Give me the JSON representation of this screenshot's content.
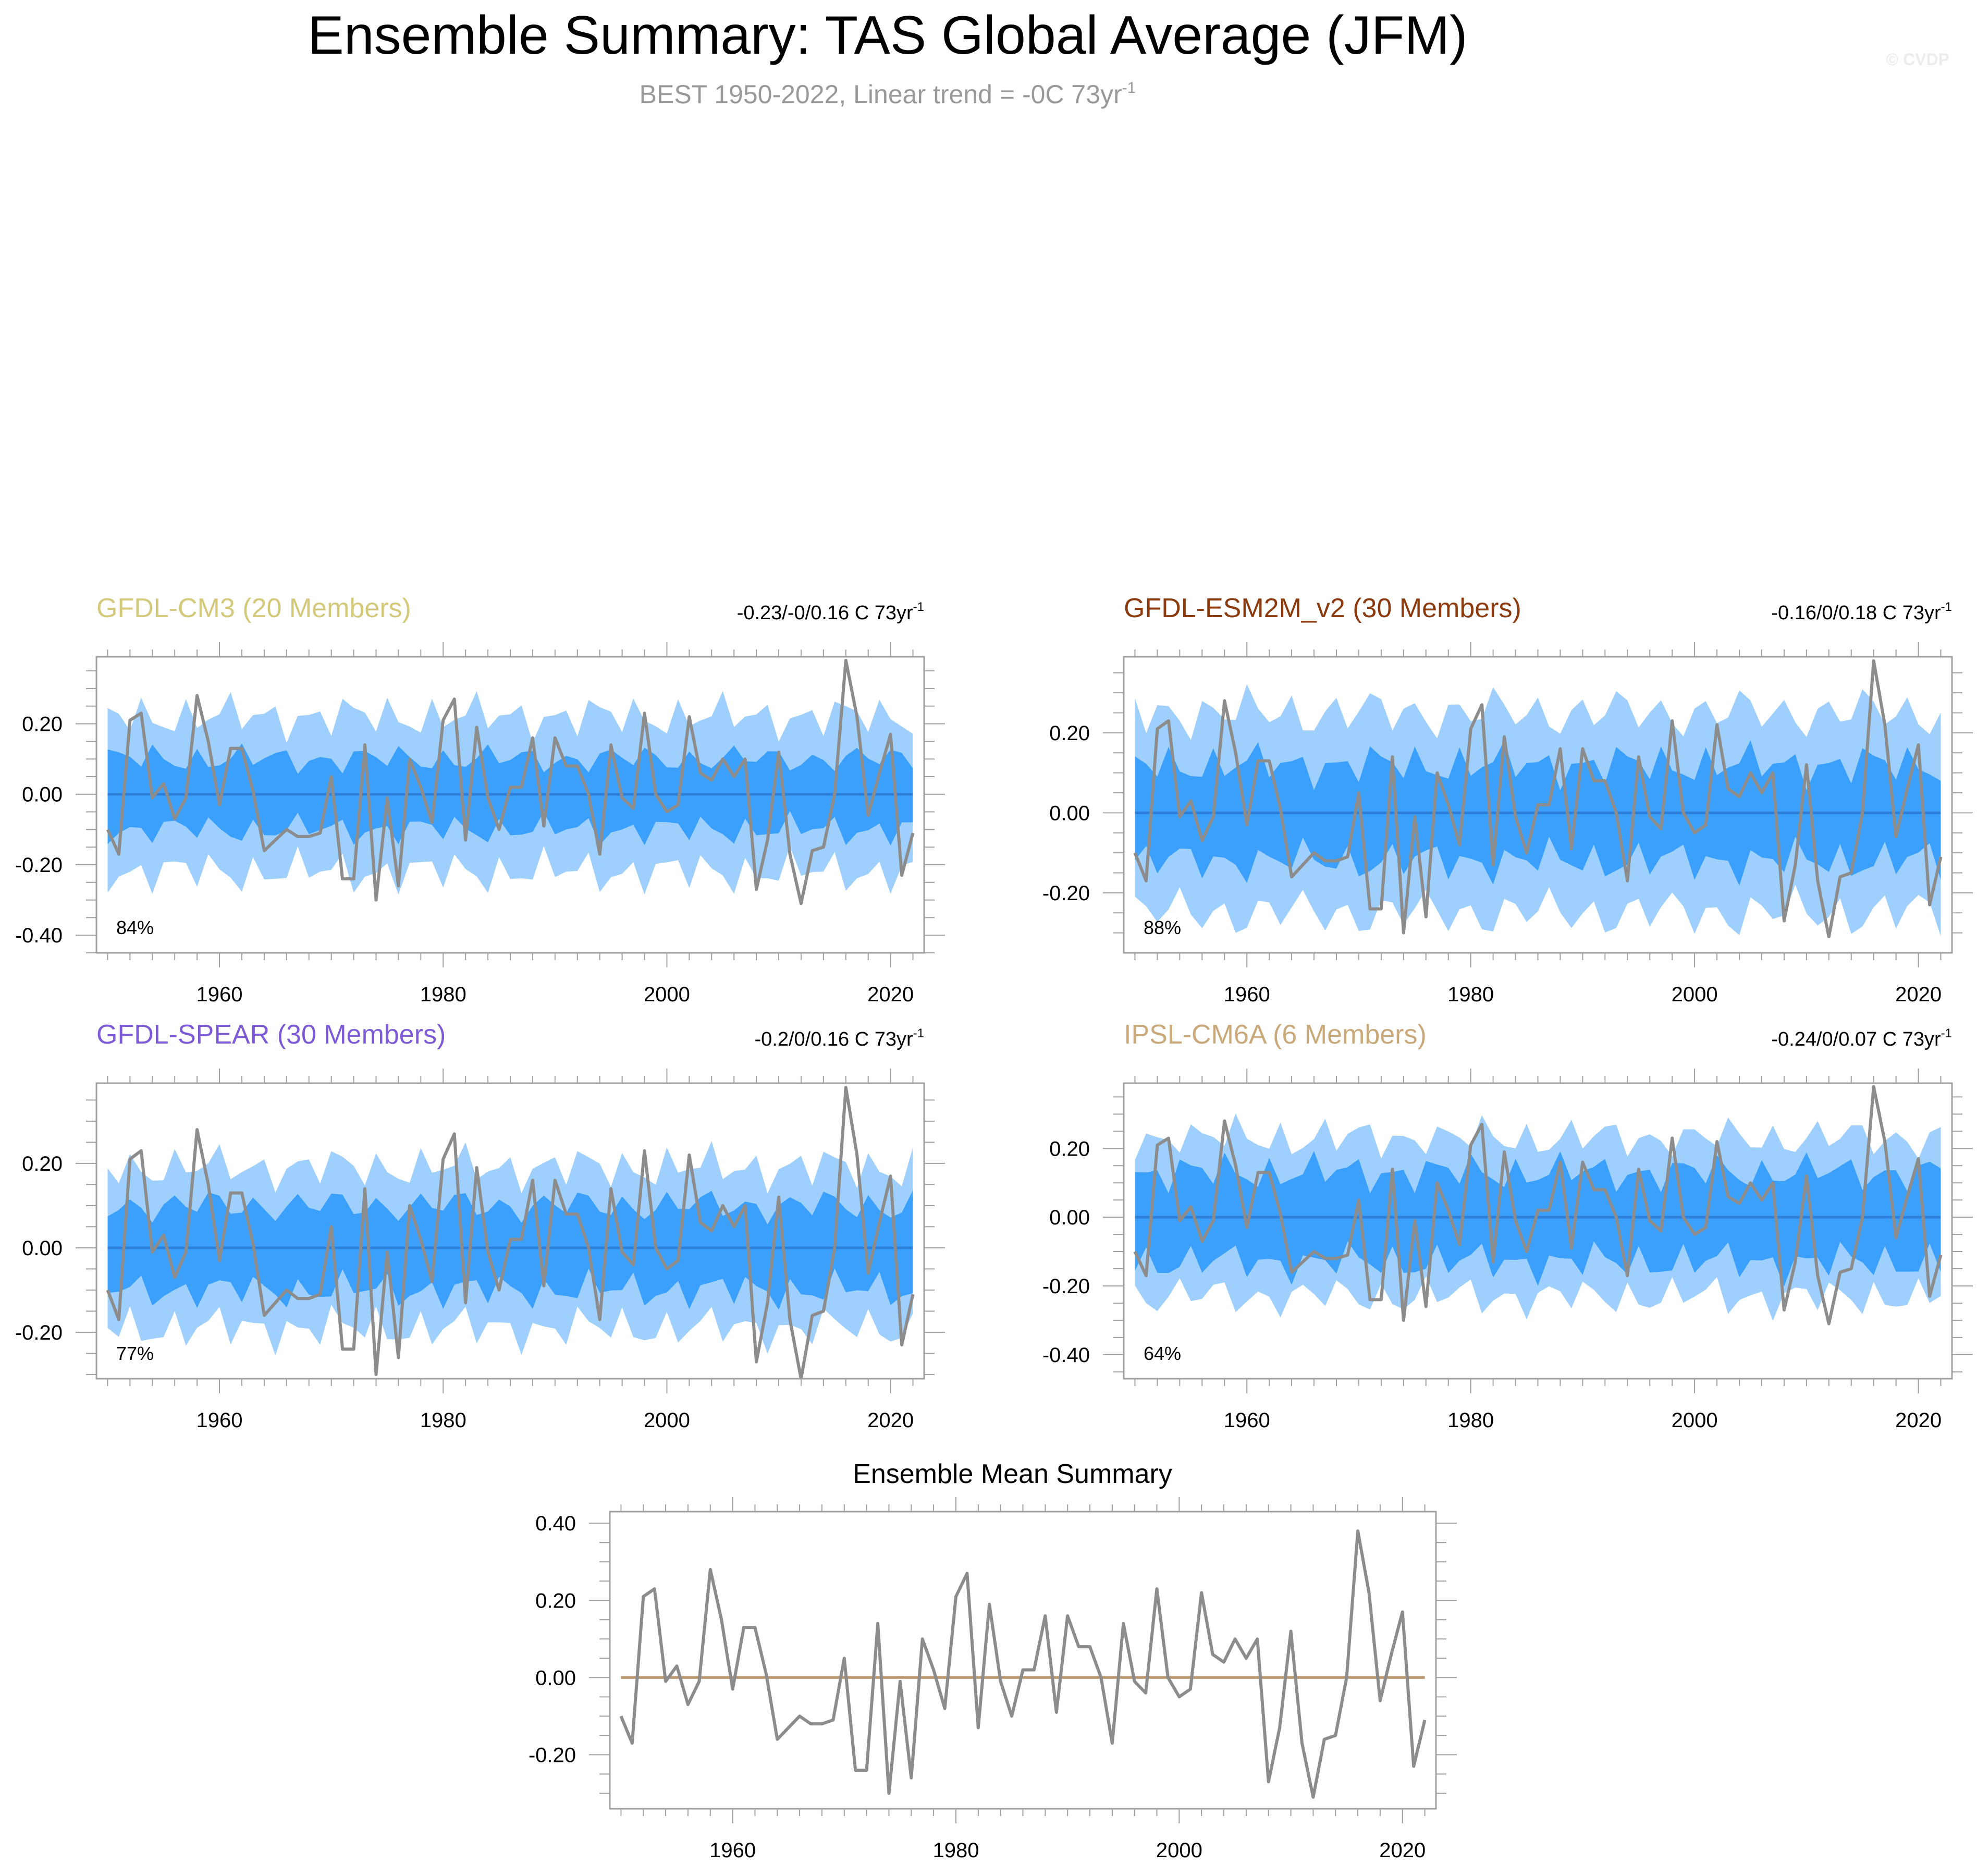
{
  "header": {
    "title": "Ensemble Summary: TAS Global Average (JFM)",
    "subtitle_main": "BEST 1950-2022, Linear trend = -0C 73yr",
    "subtitle_exp": "-1",
    "watermark": "© CVDP"
  },
  "colors": {
    "band_outer": "#9FD0FD",
    "band_inner": "#3AA0FC",
    "ens_mean_line": "#2E7FD9",
    "obs_line": "#8C8C8C",
    "summary_zero_line": "#B8946A"
  },
  "chart_data": [
    {
      "type": "line",
      "id": "cm3",
      "title": "GFDL-CM3 (20 Members)",
      "title_color": "#D4C97A",
      "trend_main": "-0.23/-0/0.16 C 73yr",
      "trend_exp": "-1",
      "pct_label": "84%",
      "ylim": [
        -0.45,
        0.39
      ],
      "yticks": [
        -0.4,
        -0.2,
        0.0,
        0.2
      ],
      "ytick_labels": [
        "-0.40",
        "-0.20",
        "0.00",
        "0.20"
      ],
      "xticks": [
        1960,
        1980,
        2000,
        2020
      ],
      "xtick_labels": [
        "1960",
        "1980",
        "2000",
        "2020"
      ],
      "inner_amp": 0.1,
      "outer_amp": 0.22
    },
    {
      "type": "line",
      "id": "esm2m",
      "title": "GFDL-ESM2M_v2 (30 Members)",
      "title_color": "#8B3A0E",
      "trend_main": "-0.16/0/0.18 C 73yr",
      "trend_exp": "-1",
      "pct_label": "88%",
      "ylim": [
        -0.35,
        0.39
      ],
      "yticks": [
        -0.2,
        0.0,
        0.2
      ],
      "ytick_labels": [
        "-0.20",
        "0.00",
        "0.20"
      ],
      "xticks": [
        1960,
        1980,
        2000,
        2020
      ],
      "xtick_labels": [
        "1960",
        "1980",
        "2000",
        "2020"
      ],
      "inner_amp": 0.12,
      "outer_amp": 0.25
    },
    {
      "type": "line",
      "id": "spear",
      "title": "GFDL-SPEAR (30 Members)",
      "title_color": "#7E5BD6",
      "trend_main": "-0.2/0/0.16 C 73yr",
      "trend_exp": "-1",
      "pct_label": "77%",
      "ylim": [
        -0.31,
        0.39
      ],
      "yticks": [
        -0.2,
        0.0,
        0.2
      ],
      "ytick_labels": [
        "-0.20",
        "0.00",
        "0.20"
      ],
      "xticks": [
        1960,
        1980,
        2000,
        2020
      ],
      "xtick_labels": [
        "1960",
        "1980",
        "2000",
        "2020"
      ],
      "inner_amp": 0.1,
      "outer_amp": 0.19
    },
    {
      "type": "line",
      "id": "ipsl",
      "title": "IPSL-CM6A (6 Members)",
      "title_color": "#C9A87A",
      "trend_main": "-0.24/0/0.07 C 73yr",
      "trend_exp": "-1",
      "pct_label": "64%",
      "ylim": [
        -0.47,
        0.39
      ],
      "yticks": [
        -0.4,
        -0.2,
        0.0,
        0.2
      ],
      "ytick_labels": [
        "-0.40",
        "-0.20",
        "0.00",
        "0.20"
      ],
      "xticks": [
        1960,
        1980,
        2000,
        2020
      ],
      "xtick_labels": [
        "1960",
        "1980",
        "2000",
        "2020"
      ],
      "inner_amp": 0.13,
      "outer_amp": 0.23
    },
    {
      "type": "line",
      "id": "summary",
      "title": "Ensemble Mean Summary",
      "title_color": "#000000",
      "ylim": [
        -0.34,
        0.43
      ],
      "yticks": [
        -0.2,
        0.0,
        0.2,
        0.4
      ],
      "ytick_labels": [
        "-0.20",
        "0.00",
        "0.20",
        "0.40"
      ],
      "xticks": [
        1960,
        1980,
        2000,
        2020
      ],
      "xtick_labels": [
        "1960",
        "1980",
        "2000",
        "2020"
      ]
    }
  ],
  "observations": {
    "name": "BEST",
    "x_start": 1950,
    "x_end": 2022,
    "x_range": [
      1949,
      2023
    ],
    "values": [
      -0.1,
      -0.17,
      0.21,
      0.23,
      -0.01,
      0.03,
      -0.07,
      -0.01,
      0.28,
      0.15,
      -0.03,
      0.13,
      0.13,
      0.01,
      -0.16,
      -0.13,
      -0.1,
      -0.12,
      -0.12,
      -0.11,
      0.05,
      -0.24,
      -0.24,
      0.14,
      -0.3,
      -0.01,
      -0.26,
      0.1,
      0.02,
      -0.08,
      0.21,
      0.27,
      -0.13,
      0.19,
      -0.01,
      -0.1,
      0.02,
      0.02,
      0.16,
      -0.09,
      0.16,
      0.08,
      0.08,
      0.0,
      -0.17,
      0.14,
      -0.01,
      -0.04,
      0.23,
      0.0,
      -0.05,
      -0.03,
      0.22,
      0.06,
      0.04,
      0.1,
      0.05,
      0.1,
      -0.27,
      -0.13,
      0.12,
      -0.17,
      -0.31,
      -0.16,
      -0.15,
      0.0,
      0.38,
      0.22,
      -0.06,
      0.06,
      0.17,
      -0.23,
      -0.11
    ]
  }
}
